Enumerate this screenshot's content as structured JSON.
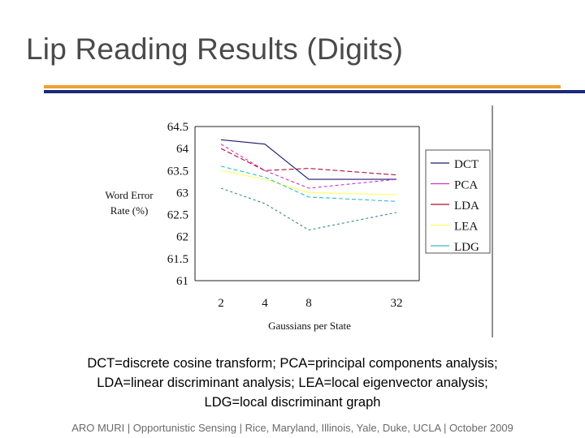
{
  "slide": {
    "title": "Lip Reading Results (Digits)",
    "accent_colors": {
      "orange_rule": "#f0a030",
      "navy_rule": "#1a2a7a"
    }
  },
  "caption": {
    "line1": "DCT=discrete cosine transform; PCA=principal components analysis;",
    "line2": "LDA=linear discriminant analysis; LEA=local eigenvector analysis;",
    "line3": "LDG=local discriminant graph"
  },
  "footer": {
    "text": "ARO MURI | Opportunistic Sensing | Rice, Maryland, Illinois, Yale, Duke, UCLA | October 2009"
  },
  "chart_data": {
    "type": "line",
    "title": "",
    "xlabel": "Gaussians per State",
    "ylabel_line1": "Word Error",
    "ylabel_line2": "Rate (%)",
    "categories": [
      "2",
      "4",
      "8",
      "32"
    ],
    "ylim": [
      61,
      64.5
    ],
    "yticks": [
      "64.5",
      "64",
      "63.5",
      "63",
      "62.5",
      "62",
      "61.5",
      "61"
    ],
    "grid": false,
    "legend_position": "right",
    "series": [
      {
        "name": "DCT",
        "color": "#1a1a6e",
        "dash": "none",
        "values": [
          64.2,
          64.1,
          63.3,
          63.3
        ]
      },
      {
        "name": "PCA",
        "color": "#cc33cc",
        "dash": "4,3",
        "values": [
          64.1,
          63.5,
          63.1,
          63.3
        ]
      },
      {
        "name": "LDA",
        "color": "#b01030",
        "dash": "6,3",
        "values": [
          64.0,
          63.5,
          63.55,
          63.4
        ]
      },
      {
        "name": "LEA",
        "color": "#ffff66",
        "dash": "none",
        "values": [
          63.5,
          63.3,
          63.0,
          62.95
        ]
      },
      {
        "name": "LDG",
        "color": "#30bcd0",
        "dash": "5,3",
        "values": [
          63.6,
          63.35,
          62.9,
          62.8
        ]
      },
      {
        "name": "",
        "color": "#3a8a8a",
        "dash": "3,3",
        "values": [
          63.1,
          62.75,
          62.15,
          62.55
        ]
      }
    ]
  }
}
